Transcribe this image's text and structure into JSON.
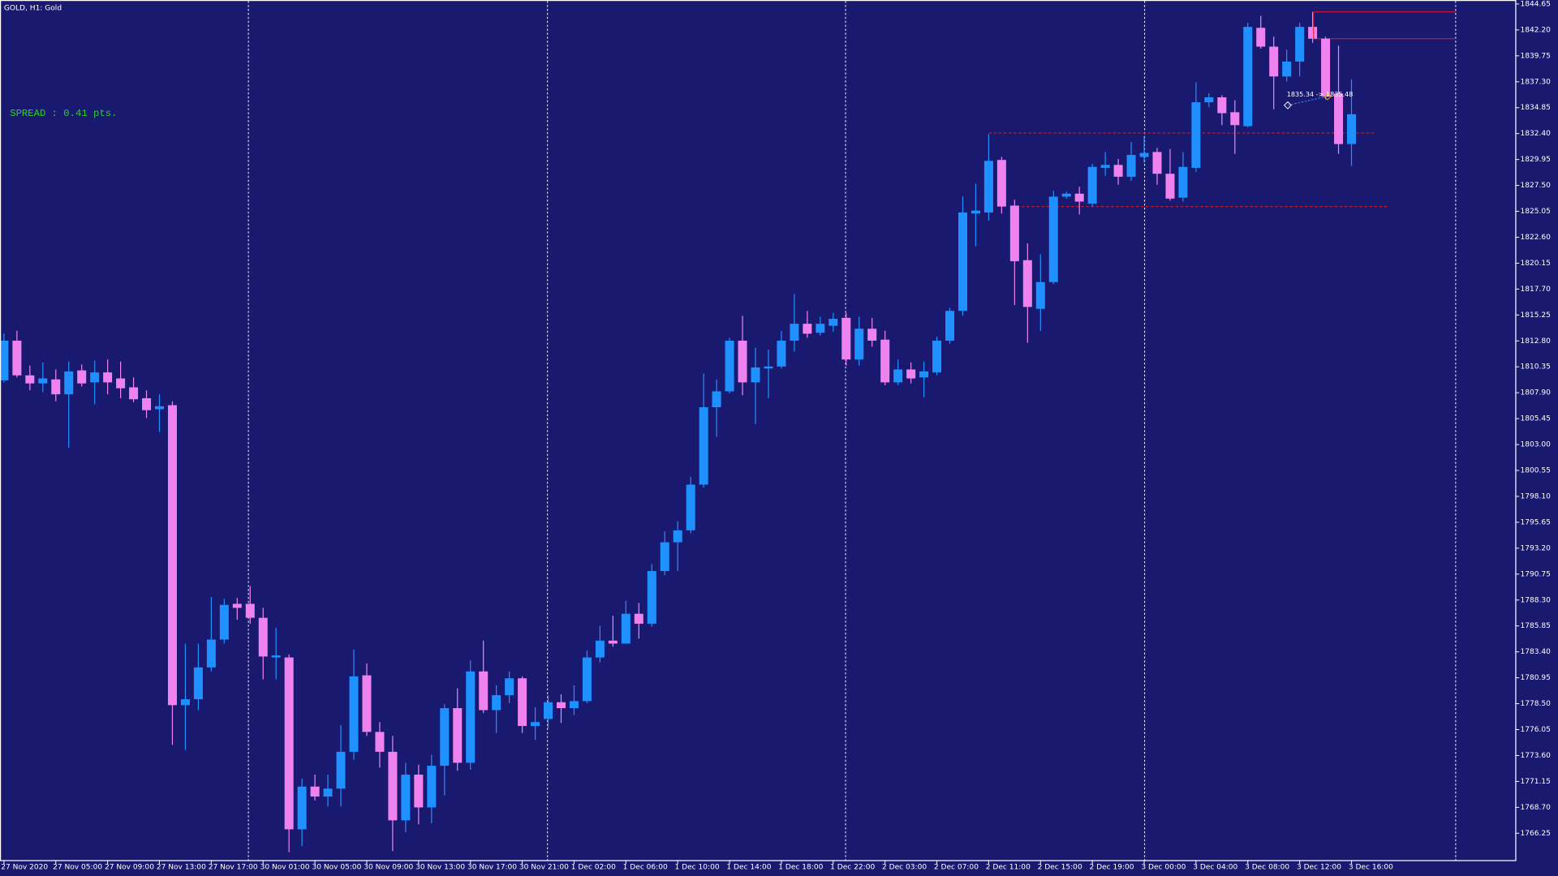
{
  "chart_data": {
    "type": "candlestick",
    "title": "GOLD, H1:  Gold",
    "spread": "SPREAD : 0.41 pts.",
    "trade_label": "1835.34 -> 1835.48",
    "background": "#191970",
    "up_color": "#1e90ff",
    "down_color": "#ee82ee",
    "spread_color": "#32cd32",
    "categories": [
      "27 Nov 2020",
      null,
      null,
      null,
      "27 Nov 05:00",
      null,
      null,
      null,
      "27 Nov 09:00",
      null,
      null,
      null,
      "27 Nov 13:00",
      null,
      null,
      null,
      "27 Nov 17:00",
      null,
      null,
      null,
      "30 Nov 01:00",
      null,
      null,
      null,
      "30 Nov 05:00",
      null,
      null,
      null,
      "30 Nov 09:00",
      null,
      null,
      null,
      "30 Nov 13:00",
      null,
      null,
      null,
      "30 Nov 17:00",
      null,
      null,
      null,
      "30 Nov 21:00",
      null,
      null,
      null,
      "1 Dec 02:00",
      null,
      null,
      null,
      "1 Dec 06:00",
      null,
      null,
      null,
      "1 Dec 10:00",
      null,
      null,
      null,
      "1 Dec 14:00",
      null,
      null,
      null,
      "1 Dec 18:00",
      null,
      null,
      null,
      "1 Dec 22:00",
      null,
      null,
      null,
      "2 Dec 03:00",
      null,
      null,
      null,
      "2 Dec 07:00",
      null,
      null,
      null,
      "2 Dec 11:00",
      null,
      null,
      null,
      "2 Dec 15:00",
      null,
      null,
      null,
      "2 Dec 19:00",
      null,
      null,
      null,
      "3 Dec 00:00",
      null,
      null,
      null,
      "3 Dec 04:00",
      null,
      null,
      null,
      "3 Dec 08:00",
      null,
      null,
      null,
      "3 Dec 12:00",
      null,
      null,
      null,
      "3 Dec 16:00"
    ],
    "open": [
      1809.07,
      1812.82,
      1809.54,
      1808.78,
      1809.16,
      1807.75,
      1810.01,
      1808.88,
      1809.82,
      1809.25,
      1808.41,
      1807.38,
      1806.34,
      1806.72,
      1778.36,
      1778.92,
      1781.93,
      1784.56,
      1787.94,
      1787.94,
      1786.62,
      1782.87,
      1782.87,
      1766.62,
      1770.66,
      1769.72,
      1770.47,
      1773.95,
      1781.18,
      1775.83,
      1773.95,
      1767.47,
      1771.79,
      1768.69,
      1772.63,
      1778.08,
      1772.91,
      1781.55,
      1777.89,
      1779.3,
      1780.9,
      1776.39,
      1777.05,
      1778.64,
      1778.08,
      1778.74,
      1782.87,
      1784.46,
      1784.18,
      1787.0,
      1786.06,
      1791.04,
      1793.76,
      1794.89,
      1799.21,
      1806.53,
      1808.03,
      1812.82,
      1808.88,
      1810.19,
      1810.38,
      1812.82,
      1814.42,
      1813.57,
      1814.23,
      1814.98,
      1811.04,
      1813.95,
      1812.92,
      1808.88,
      1810.1,
      1809.35,
      1809.82,
      1812.82,
      1815.64,
      1824.84,
      1824.94,
      1829.91,
      1825.59,
      1820.43,
      1815.83,
      1818.36,
      1826.44,
      1826.72,
      1825.78,
      1829.16,
      1829.44,
      1828.32,
      1830.19,
      1830.66,
      1828.6,
      1826.34,
      1829.16,
      1835.36,
      1835.83,
      1834.42,
      1833.1,
      1842.4,
      1840.62,
      1837.8,
      1839.21,
      1842.49,
      1841.37,
      1836.2,
      1831.41
    ],
    "high": [
      1813.48,
      1813.76,
      1810.47,
      1810.76,
      1810.1,
      1810.85,
      1810.57,
      1810.94,
      1811.04,
      1810.85,
      1809.35,
      1808.13,
      1807.75,
      1807.09,
      1784.18,
      1784.18,
      1788.6,
      1788.41,
      1788.5,
      1789.63,
      1787.56,
      1785.69,
      1783.15,
      1771.41,
      1771.79,
      1771.79,
      1776.48,
      1783.62,
      1782.3,
      1776.76,
      1775.45,
      1772.91,
      1772.73,
      1773.67,
      1778.45,
      1779.96,
      1782.59,
      1784.46,
      1780.24,
      1781.55,
      1781.08,
      1778.17,
      1779.3,
      1779.39,
      1780.24,
      1783.53,
      1785.87,
      1786.81,
      1788.22,
      1788.03,
      1791.69,
      1794.79,
      1795.73,
      1799.96,
      1809.72,
      1809.16,
      1813.1,
      1815.17,
      1812.16,
      1811.98,
      1813.76,
      1817.24,
      1815.64,
      1815.08,
      1815.45,
      1815.45,
      1815.08,
      1814.98,
      1813.76,
      1811.04,
      1810.76,
      1810.85,
      1813.2,
      1815.92,
      1826.44,
      1827.66,
      1832.35,
      1830.19,
      1826.16,
      1822.02,
      1820.99,
      1827.0,
      1826.91,
      1827.38,
      1829.54,
      1830.66,
      1830.01,
      1831.6,
      1832.17,
      1831.04,
      1830.94,
      1830.66,
      1837.24,
      1836.2,
      1836.02,
      1835.55,
      1842.87,
      1843.53,
      1841.56,
      1840.33,
      1842.87,
      1843.9,
      1841.56,
      1840.71,
      1837.52
    ],
    "low": [
      1808.88,
      1809.35,
      1808.13,
      1807.94,
      1807.09,
      1802.68,
      1808.5,
      1806.81,
      1807.75,
      1807.38,
      1807.0,
      1805.5,
      1804.18,
      1774.6,
      1774.14,
      1777.89,
      1781.55,
      1784.18,
      1786.44,
      1786.06,
      1780.8,
      1780.8,
      1764.46,
      1765.03,
      1769.35,
      1768.78,
      1768.78,
      1773.2,
      1775.45,
      1772.45,
      1764.56,
      1766.34,
      1767.09,
      1767.19,
      1769.82,
      1772.16,
      1772.26,
      1777.61,
      1775.73,
      1778.55,
      1775.73,
      1775.07,
      1776.2,
      1776.67,
      1777.42,
      1778.55,
      1782.4,
      1783.9,
      1784.18,
      1784.65,
      1785.78,
      1790.66,
      1791.04,
      1794.61,
      1798.93,
      1803.71,
      1807.85,
      1807.66,
      1804.93,
      1807.38,
      1810.19,
      1811.79,
      1813.1,
      1813.29,
      1813.67,
      1810.47,
      1810.47,
      1812.26,
      1808.6,
      1808.6,
      1808.78,
      1807.47,
      1809.54,
      1812.54,
      1815.17,
      1821.74,
      1824.18,
      1824.84,
      1816.2,
      1812.63,
      1813.76,
      1818.17,
      1826.25,
      1824.75,
      1825.5,
      1828.41,
      1827.56,
      1827.94,
      1829.63,
      1827.56,
      1826.06,
      1825.97,
      1828.79,
      1834.89,
      1833.2,
      1830.48,
      1833.01,
      1840.43,
      1834.7,
      1837.33,
      1837.8,
      1840.99,
      1835.64,
      1830.48,
      1829.35
    ],
    "close": [
      1812.82,
      1809.54,
      1808.78,
      1809.25,
      1807.75,
      1809.91,
      1808.78,
      1809.82,
      1808.88,
      1808.32,
      1807.28,
      1806.25,
      1806.62,
      1778.36,
      1778.92,
      1781.93,
      1784.56,
      1787.84,
      1787.56,
      1786.62,
      1782.96,
      1783.06,
      1766.62,
      1770.66,
      1769.72,
      1770.47,
      1773.95,
      1781.08,
      1775.83,
      1773.95,
      1767.47,
      1771.79,
      1768.69,
      1772.63,
      1778.08,
      1772.91,
      1781.55,
      1777.89,
      1779.3,
      1780.9,
      1776.39,
      1776.76,
      1778.64,
      1778.08,
      1778.74,
      1782.87,
      1784.46,
      1784.18,
      1787.0,
      1786.06,
      1791.04,
      1793.76,
      1794.89,
      1799.21,
      1806.53,
      1808.03,
      1812.82,
      1808.88,
      1810.29,
      1810.38,
      1812.82,
      1814.42,
      1813.48,
      1814.42,
      1814.89,
      1811.04,
      1813.95,
      1812.82,
      1808.88,
      1810.1,
      1809.25,
      1809.91,
      1812.82,
      1815.64,
      1824.94,
      1825.12,
      1829.82,
      1825.5,
      1820.33,
      1816.01,
      1818.36,
      1826.44,
      1826.72,
      1825.97,
      1829.25,
      1829.44,
      1828.32,
      1830.38,
      1830.57,
      1828.6,
      1826.25,
      1829.25,
      1835.36,
      1835.83,
      1834.33,
      1833.2,
      1842.49,
      1840.62,
      1837.8,
      1839.21,
      1842.49,
      1841.37,
      1835.92,
      1831.41,
      1834.23
    ],
    "levels": [
      {
        "value": 1843.9,
        "color": "#e0142c",
        "style": "solid"
      },
      {
        "value": 1841.37,
        "color": "#e0142c",
        "style": "solid"
      },
      {
        "value": 1832.45,
        "color": "#c81e1e",
        "style": "dashed"
      },
      {
        "value": 1825.5,
        "color": "#c81e1e",
        "style": "dashed"
      }
    ],
    "ylim": [
      1763.71,
      1845.03
    ],
    "yticks": [
      1844.65,
      {
        "value": 1842.2,
        "label": "1842.20"
      },
      1839.75,
      {
        "value": 1837.3,
        "label": "1837.30"
      },
      1834.85,
      {
        "value": 1832.4,
        "label": "1832.40"
      },
      1829.95,
      {
        "value": 1827.5,
        "label": "1827.50"
      },
      1825.05,
      {
        "value": 1822.6,
        "label": "1822.60"
      },
      1820.15,
      {
        "value": 1817.7,
        "label": "1817.70"
      },
      1815.25,
      {
        "value": 1812.8,
        "label": "1812.80"
      },
      1810.35,
      {
        "value": 1807.9,
        "label": "1807.90"
      },
      1805.45,
      {
        "value": 1803,
        "label": "1803.00"
      },
      1800.55,
      {
        "value": 1798.1,
        "label": "1798.10"
      },
      1795.65,
      {
        "value": 1793.2,
        "label": "1793.20"
      },
      1790.75,
      {
        "value": 1788.3,
        "label": "1788.30"
      },
      1785.85,
      {
        "value": 1783.4,
        "label": "1783.40"
      },
      1780.95,
      {
        "value": 1778.5,
        "label": "1778.50"
      },
      1776.05,
      {
        "value": 1773.6,
        "label": "1773.60"
      },
      1771.15,
      {
        "value": 1768.7,
        "label": "1768.70"
      },
      1766.25
    ]
  }
}
